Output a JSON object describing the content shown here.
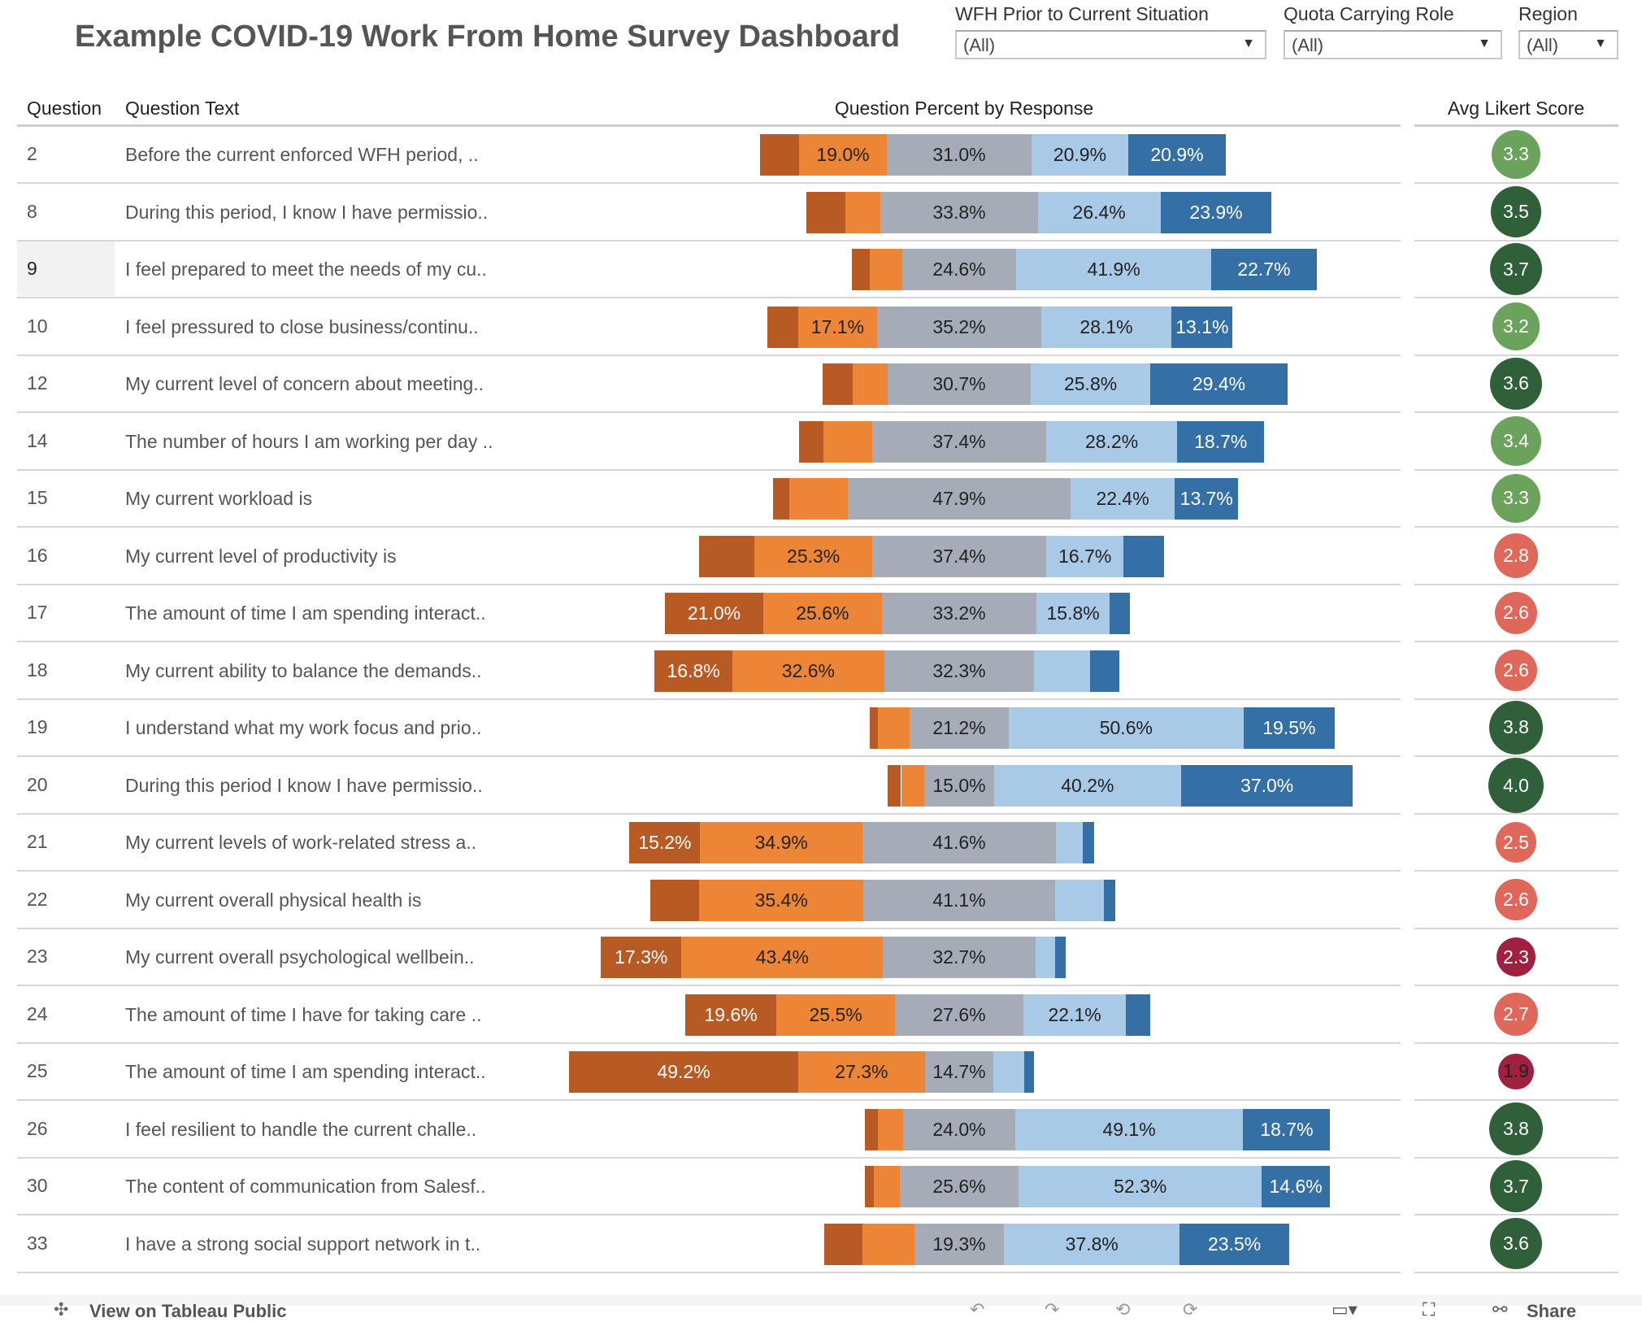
{
  "title": "Example COVID-19 Work From Home Survey Dashboard",
  "filters": [
    {
      "label": "WFH Prior to Current Situation",
      "value": "(All)"
    },
    {
      "label": "Quota Carrying Role",
      "value": "(All)"
    },
    {
      "label": "Region",
      "value": "(All)"
    }
  ],
  "columns": {
    "question": "Question",
    "question_text": "Question Text",
    "percent": "Question Percent by Response",
    "likert": "Avg Likert Score"
  },
  "colors": {
    "strongly_disagree": "#b85a23",
    "disagree": "#ec8535",
    "neutral": "#a5acb8",
    "agree": "#a9cae6",
    "strongly_agree": "#3470a6",
    "score_dark_green": "#2f6039",
    "score_light_green": "#6ba35d",
    "score_salmon": "#e0685a",
    "score_dark_red": "#a02040"
  },
  "chart_data": {
    "type": "bar",
    "stacked": "diverging",
    "segments_order": [
      "strongly_disagree",
      "disagree",
      "neutral",
      "agree",
      "strongly_agree"
    ],
    "rows": [
      {
        "q": "2",
        "text": "Before the current enforced WFH period, ..",
        "values": [
          8.4,
          19.0,
          31.0,
          20.9,
          20.9
        ],
        "labeled": [
          0,
          1,
          1,
          1,
          1
        ],
        "score": "3.3",
        "score_color": "#6ba35d"
      },
      {
        "q": "8",
        "text": "During this period, I know I have permissio..",
        "values": [
          8.4,
          7.5,
          33.8,
          26.4,
          23.9
        ],
        "labeled": [
          0,
          0,
          1,
          1,
          1
        ],
        "score": "3.5",
        "score_color": "#2f6039"
      },
      {
        "q": "9",
        "text": "I feel prepared to meet the needs of my cu..",
        "values": [
          3.9,
          6.9,
          24.6,
          41.9,
          22.7
        ],
        "labeled": [
          0,
          0,
          1,
          1,
          1
        ],
        "score": "3.7",
        "score_color": "#2f6039",
        "highlight": true
      },
      {
        "q": "10",
        "text": "I feel pressured to close business/continu..",
        "values": [
          6.5,
          17.1,
          35.2,
          28.1,
          13.1
        ],
        "labeled": [
          0,
          1,
          1,
          1,
          1
        ],
        "score": "3.2",
        "score_color": "#6ba35d"
      },
      {
        "q": "12",
        "text": "My current level of concern about meeting..",
        "values": [
          6.6,
          7.5,
          30.7,
          25.8,
          29.4
        ],
        "labeled": [
          0,
          0,
          1,
          1,
          1
        ],
        "score": "3.6",
        "score_color": "#2f6039"
      },
      {
        "q": "14",
        "text": "The number of hours I am working per day ..",
        "values": [
          5.2,
          10.5,
          37.4,
          28.2,
          18.7
        ],
        "labeled": [
          0,
          0,
          1,
          1,
          1
        ],
        "score": "3.4",
        "score_color": "#6ba35d"
      },
      {
        "q": "15",
        "text": "My current workload is",
        "values": [
          3.4,
          12.6,
          47.9,
          22.4,
          13.7
        ],
        "labeled": [
          0,
          0,
          1,
          1,
          1
        ],
        "score": "3.3",
        "score_color": "#6ba35d"
      },
      {
        "q": "16",
        "text": "My current level of productivity is",
        "values": [
          12.0,
          25.3,
          37.4,
          16.7,
          8.6
        ],
        "labeled": [
          0,
          1,
          1,
          1,
          0
        ],
        "score": "2.8",
        "score_color": "#e0685a"
      },
      {
        "q": "17",
        "text": "The amount of time I am spending interact..",
        "values": [
          21.0,
          25.6,
          33.2,
          15.8,
          4.4
        ],
        "labeled": [
          1,
          1,
          1,
          1,
          0
        ],
        "score": "2.6",
        "score_color": "#e0685a"
      },
      {
        "q": "18",
        "text": "My current ability to balance the demands..",
        "values": [
          16.8,
          32.6,
          32.3,
          12.0,
          6.3
        ],
        "labeled": [
          1,
          1,
          1,
          0,
          0
        ],
        "score": "2.6",
        "score_color": "#e0685a"
      },
      {
        "q": "19",
        "text": "I understand what my work focus and prio..",
        "values": [
          1.9,
          6.8,
          21.2,
          50.6,
          19.5
        ],
        "labeled": [
          0,
          0,
          1,
          1,
          1
        ],
        "score": "3.8",
        "score_color": "#2f6039"
      },
      {
        "q": "20",
        "text": "During this period I know I have permissio..",
        "values": [
          2.8,
          5.0,
          15.0,
          40.2,
          37.0
        ],
        "labeled": [
          0,
          0,
          1,
          1,
          1
        ],
        "score": "4.0",
        "score_color": "#2f6039"
      },
      {
        "q": "21",
        "text": "My current levels of work-related stress a..",
        "values": [
          15.2,
          34.9,
          41.6,
          5.8,
          2.5
        ],
        "labeled": [
          1,
          1,
          1,
          0,
          0
        ],
        "score": "2.5",
        "score_color": "#e0685a"
      },
      {
        "q": "22",
        "text": "My current overall physical health is",
        "values": [
          10.5,
          35.4,
          41.1,
          10.5,
          2.5
        ],
        "labeled": [
          0,
          1,
          1,
          0,
          0
        ],
        "score": "2.6",
        "score_color": "#e0685a"
      },
      {
        "q": "23",
        "text": "My current overall psychological wellbein..",
        "values": [
          17.3,
          43.4,
          32.7,
          4.3,
          2.3
        ],
        "labeled": [
          1,
          1,
          1,
          0,
          0
        ],
        "score": "2.3",
        "score_color": "#a02040"
      },
      {
        "q": "24",
        "text": "The amount of time I have for taking care ..",
        "values": [
          19.6,
          25.5,
          27.6,
          22.1,
          5.2
        ],
        "labeled": [
          1,
          1,
          1,
          1,
          0
        ],
        "score": "2.7",
        "score_color": "#e0685a"
      },
      {
        "q": "25",
        "text": "The amount of time I am spending interact..",
        "values": [
          49.2,
          27.3,
          14.7,
          6.7,
          2.1
        ],
        "labeled": [
          1,
          1,
          1,
          0,
          0
        ],
        "score": "1.9",
        "score_color": "#a02040"
      },
      {
        "q": "26",
        "text": "I feel resilient to handle the current challe..",
        "values": [
          2.7,
          5.5,
          24.0,
          49.1,
          18.7
        ],
        "labeled": [
          0,
          0,
          1,
          1,
          1
        ],
        "score": "3.8",
        "score_color": "#2f6039"
      },
      {
        "q": "30",
        "text": "The content of communication from Salesf..",
        "values": [
          2.0,
          5.5,
          25.6,
          52.3,
          14.6
        ],
        "labeled": [
          0,
          0,
          1,
          1,
          1
        ],
        "score": "3.7",
        "score_color": "#2f6039"
      },
      {
        "q": "33",
        "text": "I have a strong social support network in t..",
        "values": [
          8.2,
          11.2,
          19.3,
          37.8,
          23.5
        ],
        "labeled": [
          0,
          0,
          1,
          1,
          1
        ],
        "score": "3.6",
        "score_color": "#2f6039"
      }
    ]
  },
  "toolbar": {
    "view_on": "View on Tableau Public",
    "share": "Share",
    "icons": [
      "tableau-logo-icon",
      "undo-icon",
      "redo-icon",
      "revert-icon",
      "refresh-icon",
      "device-layout-icon",
      "fullscreen-icon",
      "share-icon"
    ]
  }
}
